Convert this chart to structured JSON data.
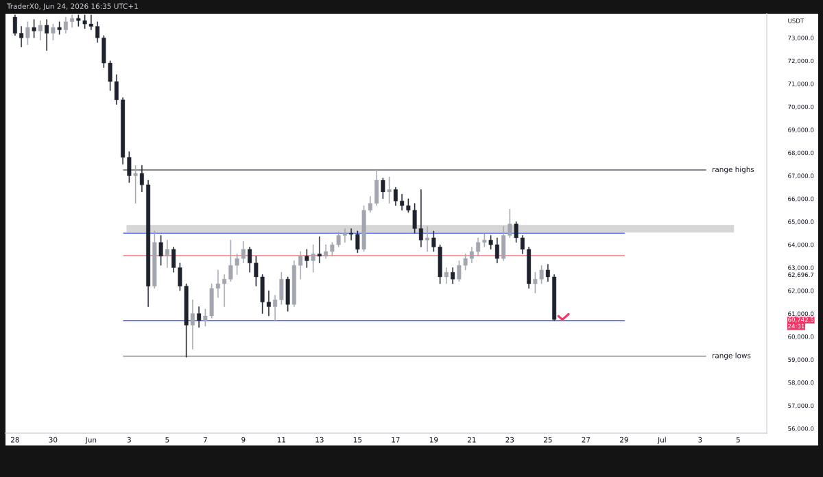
{
  "chart_data": {
    "type": "candlestick",
    "ylabel": "USDT",
    "annotations": [
      "TraderX0, Jun 24, 2026 16:35 UTC+1",
      "24:31"
    ],
    "x": [
      "2026-05-28T00:00",
      "2026-05-28T08:00",
      "2026-05-28T16:00",
      "2026-05-29T00:00",
      "2026-05-29T08:00",
      "2026-05-29T16:00",
      "2026-05-30T00:00",
      "2026-05-30T08:00",
      "2026-05-30T16:00",
      "2026-05-31T00:00",
      "2026-05-31T08:00",
      "2026-05-31T16:00",
      "2026-06-01T00:00",
      "2026-06-01T08:00",
      "2026-06-01T16:00",
      "2026-06-02T00:00",
      "2026-06-02T08:00",
      "2026-06-02T16:00",
      "2026-06-03T00:00",
      "2026-06-03T08:00",
      "2026-06-03T16:00",
      "2026-06-04T00:00",
      "2026-06-04T08:00",
      "2026-06-04T16:00",
      "2026-06-05T00:00",
      "2026-06-05T08:00",
      "2026-06-05T16:00",
      "2026-06-06T00:00",
      "2026-06-06T08:00",
      "2026-06-06T16:00",
      "2026-06-07T00:00",
      "2026-06-07T08:00",
      "2026-06-07T16:00",
      "2026-06-08T00:00",
      "2026-06-08T08:00",
      "2026-06-08T16:00",
      "2026-06-09T00:00",
      "2026-06-09T08:00",
      "2026-06-09T16:00",
      "2026-06-10T00:00",
      "2026-06-10T08:00",
      "2026-06-10T16:00",
      "2026-06-11T00:00",
      "2026-06-11T08:00",
      "2026-06-11T16:00",
      "2026-06-12T00:00",
      "2026-06-12T08:00",
      "2026-06-12T16:00",
      "2026-06-13T00:00",
      "2026-06-13T08:00",
      "2026-06-13T16:00",
      "2026-06-14T00:00",
      "2026-06-14T08:00",
      "2026-06-14T16:00",
      "2026-06-15T00:00",
      "2026-06-15T08:00",
      "2026-06-15T16:00",
      "2026-06-16T00:00",
      "2026-06-16T08:00",
      "2026-06-16T16:00",
      "2026-06-17T00:00",
      "2026-06-17T08:00",
      "2026-06-17T16:00",
      "2026-06-18T00:00",
      "2026-06-18T08:00",
      "2026-06-18T16:00",
      "2026-06-19T00:00",
      "2026-06-19T08:00",
      "2026-06-19T16:00",
      "2026-06-20T00:00",
      "2026-06-20T08:00",
      "2026-06-20T16:00",
      "2026-06-21T00:00",
      "2026-06-21T08:00",
      "2026-06-21T16:00",
      "2026-06-22T00:00",
      "2026-06-22T08:00",
      "2026-06-22T16:00",
      "2026-06-23T00:00",
      "2026-06-23T08:00",
      "2026-06-23T16:00",
      "2026-06-24T00:00",
      "2026-06-24T08:00",
      "2026-06-24T16:00",
      "2026-06-25T00:00",
      "2026-06-25T08:00"
    ],
    "ohlc": [
      [
        73900,
        74000,
        73100,
        73200
      ],
      [
        73200,
        73500,
        72600,
        73000
      ],
      [
        73000,
        73700,
        72700,
        73450
      ],
      [
        73450,
        73800,
        73000,
        73300
      ],
      [
        73300,
        73750,
        72900,
        73550
      ],
      [
        73550,
        73800,
        72450,
        73200
      ],
      [
        73200,
        73600,
        72900,
        73450
      ],
      [
        73450,
        73700,
        73150,
        73350
      ],
      [
        73350,
        73900,
        73200,
        73700
      ],
      [
        73700,
        74000,
        73450,
        73850
      ],
      [
        73850,
        74000,
        73500,
        73750
      ],
      [
        73750,
        74000,
        73400,
        73600
      ],
      [
        73600,
        74000,
        73350,
        73500
      ],
      [
        73500,
        73700,
        72800,
        73000
      ],
      [
        73000,
        73100,
        71700,
        71900
      ],
      [
        71900,
        72000,
        70700,
        71100
      ],
      [
        71100,
        71400,
        70100,
        70300
      ],
      [
        70300,
        70400,
        67500,
        67800
      ],
      [
        67800,
        68050,
        66700,
        67000
      ],
      [
        67000,
        67450,
        65800,
        67100
      ],
      [
        67100,
        67450,
        66300,
        66600
      ],
      [
        66600,
        66800,
        61300,
        62200
      ],
      [
        62200,
        64600,
        62100,
        64100
      ],
      [
        64100,
        64400,
        63100,
        63500
      ],
      [
        63500,
        64200,
        63000,
        63800
      ],
      [
        63800,
        63900,
        62800,
        63000
      ],
      [
        63000,
        63200,
        62000,
        62200
      ],
      [
        62200,
        62300,
        59100,
        60500
      ],
      [
        60500,
        61600,
        59450,
        61000
      ],
      [
        61000,
        61300,
        60400,
        60700
      ],
      [
        60700,
        61200,
        60450,
        60900
      ],
      [
        60900,
        62300,
        60800,
        62100
      ],
      [
        62100,
        62900,
        61700,
        62300
      ],
      [
        62300,
        62700,
        61300,
        62500
      ],
      [
        62500,
        64200,
        62400,
        63100
      ],
      [
        63100,
        63600,
        62700,
        63400
      ],
      [
        63400,
        64150,
        63200,
        63800
      ],
      [
        63800,
        63900,
        62800,
        63200
      ],
      [
        63200,
        63500,
        62200,
        62600
      ],
      [
        62600,
        62700,
        61000,
        61500
      ],
      [
        61500,
        62000,
        60900,
        61300
      ],
      [
        61300,
        61800,
        60700,
        61600
      ],
      [
        61600,
        62800,
        61400,
        62500
      ],
      [
        62500,
        62600,
        61100,
        61400
      ],
      [
        61400,
        63300,
        61300,
        63100
      ],
      [
        63100,
        63700,
        62500,
        63500
      ],
      [
        63500,
        63800,
        63000,
        63300
      ],
      [
        63300,
        64000,
        62800,
        63600
      ],
      [
        63600,
        64350,
        63200,
        63500
      ],
      [
        63500,
        64000,
        63400,
        63700
      ],
      [
        63700,
        64100,
        63500,
        64000
      ],
      [
        64000,
        64550,
        63900,
        64400
      ],
      [
        64400,
        64700,
        64100,
        64500
      ],
      [
        64500,
        64700,
        64200,
        64450
      ],
      [
        64450,
        64600,
        63650,
        63800
      ],
      [
        63800,
        65700,
        63700,
        65500
      ],
      [
        65500,
        66100,
        65400,
        65800
      ],
      [
        65800,
        67250,
        65700,
        66800
      ],
      [
        66800,
        66900,
        66000,
        66300
      ],
      [
        66300,
        66950,
        65800,
        66400
      ],
      [
        66400,
        66500,
        65700,
        65900
      ],
      [
        65900,
        66200,
        65500,
        65700
      ],
      [
        65700,
        66000,
        65400,
        65500
      ],
      [
        65500,
        65800,
        64500,
        64700
      ],
      [
        64700,
        66400,
        63900,
        64200
      ],
      [
        64200,
        64800,
        63700,
        64300
      ],
      [
        64300,
        64600,
        63700,
        63900
      ],
      [
        63900,
        64000,
        62300,
        62600
      ],
      [
        62600,
        63000,
        62300,
        62800
      ],
      [
        62800,
        63000,
        62300,
        62500
      ],
      [
        62500,
        63300,
        62400,
        63100
      ],
      [
        63100,
        63600,
        62900,
        63400
      ],
      [
        63400,
        63900,
        63200,
        63700
      ],
      [
        63700,
        64300,
        63500,
        64100
      ],
      [
        64100,
        64500,
        63900,
        64200
      ],
      [
        64200,
        64400,
        63800,
        64000
      ],
      [
        64000,
        64300,
        63200,
        63400
      ],
      [
        63400,
        64800,
        63300,
        64400
      ],
      [
        64400,
        65550,
        64300,
        64900
      ],
      [
        64900,
        65000,
        64100,
        64300
      ],
      [
        64300,
        64400,
        63600,
        63800
      ],
      [
        63800,
        63900,
        62100,
        62300
      ],
      [
        62300,
        62800,
        61900,
        62500
      ],
      [
        62500,
        63100,
        62300,
        62900
      ],
      [
        62900,
        63150,
        62400,
        62600
      ],
      [
        62600,
        62700,
        60700,
        60742.5
      ]
    ],
    "colors": [
      "#1e222d",
      "#1e222d",
      "#a3a6af",
      "#1e222d",
      "#a3a6af",
      "#1e222d",
      "#a3a6af",
      "#1e222d",
      "#a3a6af",
      "#a3a6af",
      "#1e222d",
      "#1e222d",
      "#1e222d",
      "#1e222d",
      "#1e222d",
      "#1e222d",
      "#1e222d",
      "#1e222d",
      "#1e222d",
      "#a3a6af",
      "#1e222d",
      "#1e222d",
      "#a3a6af",
      "#1e222d",
      "#a3a6af",
      "#1e222d",
      "#1e222d",
      "#1e222d",
      "#a3a6af",
      "#1e222d",
      "#a3a6af",
      "#a3a6af",
      "#a3a6af",
      "#a3a6af",
      "#a3a6af",
      "#a3a6af",
      "#a3a6af",
      "#1e222d",
      "#1e222d",
      "#1e222d",
      "#1e222d",
      "#a3a6af",
      "#a3a6af",
      "#1e222d",
      "#a3a6af",
      "#a3a6af",
      "#1e222d",
      "#a3a6af",
      "#1e222d",
      "#a3a6af",
      "#a3a6af",
      "#a3a6af",
      "#a3a6af",
      "#1e222d",
      "#1e222d",
      "#a3a6af",
      "#a3a6af",
      "#a3a6af",
      "#1e222d",
      "#a3a6af",
      "#1e222d",
      "#1e222d",
      "#1e222d",
      "#1e222d",
      "#1e222d",
      "#a3a6af",
      "#1e222d",
      "#1e222d",
      "#a3a6af",
      "#1e222d",
      "#a3a6af",
      "#a3a6af",
      "#a3a6af",
      "#a3a6af",
      "#a3a6af",
      "#1e222d",
      "#1e222d",
      "#a3a6af",
      "#a3a6af",
      "#1e222d",
      "#1e222d",
      "#1e222d",
      "#a3a6af",
      "#a3a6af",
      "#1e222d",
      "#1e222d"
    ],
    "xlim": [
      "2026-05-27T12:00",
      "2026-07-06T12:00"
    ],
    "xticks": [
      {
        "value": "2026-05-28",
        "label": "28"
      },
      {
        "value": "2026-05-30",
        "label": "30"
      },
      {
        "value": "2026-06-01",
        "label": "Jun"
      },
      {
        "value": "2026-06-03",
        "label": "3"
      },
      {
        "value": "2026-06-05",
        "label": "5"
      },
      {
        "value": "2026-06-07",
        "label": "7"
      },
      {
        "value": "2026-06-09",
        "label": "9"
      },
      {
        "value": "2026-06-11",
        "label": "11"
      },
      {
        "value": "2026-06-13",
        "label": "13"
      },
      {
        "value": "2026-06-15",
        "label": "15"
      },
      {
        "value": "2026-06-17",
        "label": "17"
      },
      {
        "value": "2026-06-19",
        "label": "19"
      },
      {
        "value": "2026-06-21",
        "label": "21"
      },
      {
        "value": "2026-06-23",
        "label": "23"
      },
      {
        "value": "2026-06-25",
        "label": "25"
      },
      {
        "value": "2026-06-27",
        "label": "27"
      },
      {
        "value": "2026-06-29",
        "label": "29"
      },
      {
        "value": "2026-07-01",
        "label": "Jul"
      },
      {
        "value": "2026-07-03",
        "label": "3"
      },
      {
        "value": "2026-07-05",
        "label": "5"
      }
    ],
    "ylim": [
      55800,
      74050
    ],
    "yticks": [
      {
        "value": 56000,
        "label": "56,000.0"
      },
      {
        "value": 57000,
        "label": "57,000.0"
      },
      {
        "value": 58000,
        "label": "58,000.0"
      },
      {
        "value": 59000,
        "label": "59,000.0"
      },
      {
        "value": 60000,
        "label": "60,000.0"
      },
      {
        "value": 61000,
        "label": "61,000.0"
      },
      {
        "value": 62000,
        "label": "62,000.0"
      },
      {
        "value": 63000,
        "label": "63,000.0"
      },
      {
        "value": 64000,
        "label": "64,000.0"
      },
      {
        "value": 65000,
        "label": "65,000.0"
      },
      {
        "value": 66000,
        "label": "66,000.0"
      },
      {
        "value": 67000,
        "label": "67,000.0"
      },
      {
        "value": 68000,
        "label": "68,000.0"
      },
      {
        "value": 69000,
        "label": "69,000.0"
      },
      {
        "value": 70000,
        "label": "70,000.0"
      },
      {
        "value": 71000,
        "label": "71,000.0"
      },
      {
        "value": 72000,
        "label": "72,000.0"
      },
      {
        "value": 73000,
        "label": "73,000.0"
      },
      {
        "value": 62696.7,
        "label": "62,696.7"
      },
      {
        "value": 60742.5,
        "label": "60,742.5"
      }
    ],
    "ref_lines": [
      {
        "axis": "y",
        "value": 67250,
        "label": "range highs",
        "color": "#5d606b"
      },
      {
        "axis": "y",
        "value": 59150,
        "label": "range lows",
        "color": "#5d606b"
      },
      {
        "axis": "y",
        "value": 64500,
        "color": "#5b6ef5"
      },
      {
        "axis": "y",
        "value": 63525,
        "color": "#ef7a82"
      },
      {
        "axis": "y",
        "value": 60700,
        "color": "#5b6ef5"
      }
    ],
    "bands": [
      {
        "axis": "y",
        "from": 64530,
        "to": 64860,
        "color": "#d6d6d6"
      }
    ]
  }
}
